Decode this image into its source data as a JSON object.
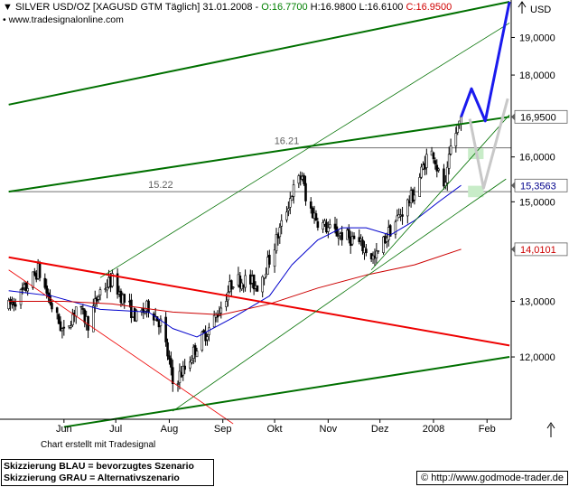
{
  "header": {
    "symbol": "SILVER USD/OZ [XAGUSD GTM",
    "period": "Täglich] 31.01.2008",
    "open": "O:16.7700",
    "hl": "H:16.9800 L:16.6100",
    "close": "C:16.9500",
    "website": "www.tradesignalonline.com",
    "currency": "USD"
  },
  "colors": {
    "candle": "#000000",
    "ma_fast": "#0000cc",
    "ma_slow": "#cc0000",
    "channel": "#007000",
    "down": "#ee0000",
    "scenario_blue": "#1a1aee",
    "scenario_grey": "#c8c8c8",
    "zone": "#c8ecc8"
  },
  "footer": {
    "credit": "Chart erstellt mit Tradesignal",
    "legend_blue": "Skizzierung BLAU = bevorzugtes Szenario",
    "legend_grey": "Skizzierung GRAU = Alternativszenario",
    "copyright": "© http://www.godmode-trader.de"
  },
  "chart_data": {
    "type": "candlestick",
    "title": "SILVER USD/OZ [XAGUSD GTM Täglich] 31.01.2008",
    "ylabel": "USD",
    "scale": "log",
    "ylim": [
      11.0,
      20.0
    ],
    "x_labels": [
      "Jun",
      "Jul",
      "Aug",
      "Sep",
      "Okt",
      "Nov",
      "Dez",
      "2008",
      "Feb"
    ],
    "y_ticks": [
      "19,0000",
      "18,0000",
      "16,0000",
      "15,0000",
      "13,0000",
      "12,0000"
    ],
    "price_tags": [
      "16,9500",
      "15,3563",
      "14,0101"
    ],
    "annotations": [
      "16.21",
      "15.22"
    ],
    "ohlc_latest": {
      "date": "31.01.2008",
      "open": 16.77,
      "high": 16.98,
      "low": 16.61,
      "close": 16.95
    },
    "anchors": [
      [
        "2007-05-14",
        12.9
      ],
      [
        "2007-05-23",
        13.2
      ],
      [
        "2007-05-31",
        13.6
      ],
      [
        "2007-06-08",
        12.9
      ],
      [
        "2007-06-15",
        12.4
      ],
      [
        "2007-06-22",
        12.9
      ],
      [
        "2007-06-29",
        12.6
      ],
      [
        "2007-07-06",
        13.2
      ],
      [
        "2007-07-13",
        13.4
      ],
      [
        "2007-07-20",
        13.0
      ],
      [
        "2007-07-27",
        12.7
      ],
      [
        "2007-08-03",
        12.9
      ],
      [
        "2007-08-10",
        12.6
      ],
      [
        "2007-08-15",
        11.9
      ],
      [
        "2007-08-17",
        11.55
      ],
      [
        "2007-08-24",
        11.8
      ],
      [
        "2007-08-31",
        12.2
      ],
      [
        "2007-09-07",
        12.5
      ],
      [
        "2007-09-14",
        12.9
      ],
      [
        "2007-09-21",
        13.4
      ],
      [
        "2007-09-28",
        13.4
      ],
      [
        "2007-10-05",
        13.3
      ],
      [
        "2007-10-12",
        13.8
      ],
      [
        "2007-10-19",
        14.5
      ],
      [
        "2007-10-25",
        15.2
      ],
      [
        "2007-10-31",
        15.6
      ],
      [
        "2007-11-02",
        15.0
      ],
      [
        "2007-11-09",
        14.6
      ],
      [
        "2007-11-16",
        14.4
      ],
      [
        "2007-11-23",
        14.3
      ],
      [
        "2007-11-30",
        14.2
      ],
      [
        "2007-12-07",
        14.0
      ],
      [
        "2007-12-12",
        13.8
      ],
      [
        "2007-12-19",
        14.3
      ],
      [
        "2007-12-28",
        14.8
      ],
      [
        "2008-01-04",
        15.2
      ],
      [
        "2008-01-11",
        16.0
      ],
      [
        "2008-01-15",
        16.1
      ],
      [
        "2008-01-18",
        15.6
      ],
      [
        "2008-01-22",
        15.3
      ],
      [
        "2008-01-25",
        16.2
      ],
      [
        "2008-01-31",
        16.95
      ]
    ],
    "ma_fast": {
      "color": "#0000cc",
      "points": [
        [
          "2007-05-14",
          13.2
        ],
        [
          "2007-06-08",
          13.1
        ],
        [
          "2007-07-06",
          12.85
        ],
        [
          "2007-08-03",
          12.8
        ],
        [
          "2007-08-17",
          12.5
        ],
        [
          "2007-08-31",
          12.35
        ],
        [
          "2007-09-21",
          12.7
        ],
        [
          "2007-10-12",
          13.1
        ],
        [
          "2007-10-25",
          13.7
        ],
        [
          "2007-11-09",
          14.2
        ],
        [
          "2007-11-23",
          14.45
        ],
        [
          "2007-12-07",
          14.45
        ],
        [
          "2007-12-21",
          14.3
        ],
        [
          "2008-01-04",
          14.6
        ],
        [
          "2008-01-18",
          15.0
        ],
        [
          "2008-01-31",
          15.36
        ]
      ]
    },
    "ma_slow": {
      "color": "#cc0000",
      "points": [
        [
          "2007-05-14",
          13.0
        ],
        [
          "2007-06-15",
          13.0
        ],
        [
          "2007-07-13",
          12.95
        ],
        [
          "2007-08-17",
          12.8
        ],
        [
          "2007-09-14",
          12.75
        ],
        [
          "2007-10-12",
          12.95
        ],
        [
          "2007-11-09",
          13.25
        ],
        [
          "2007-12-07",
          13.5
        ],
        [
          "2008-01-04",
          13.7
        ],
        [
          "2008-01-31",
          14.01
        ]
      ]
    },
    "lines": [
      {
        "name": "channel-top",
        "color": "#007000",
        "points": [
          [
            "2007-05-14",
            17.25
          ],
          [
            "2008-02-28",
            20.0
          ]
        ]
      },
      {
        "name": "channel-mid",
        "color": "#007000",
        "points": [
          [
            "2007-05-14",
            15.22
          ],
          [
            "2007-10-29",
            16.21
          ],
          [
            "2008-02-28",
            16.95
          ]
        ]
      },
      {
        "name": "channel-bottom",
        "color": "#007000",
        "points": [
          [
            "2007-06-15",
            10.85
          ],
          [
            "2008-02-28",
            12.0
          ]
        ]
      },
      {
        "name": "downtrend",
        "color": "#ee0000",
        "points": [
          [
            "2007-05-14",
            13.85
          ],
          [
            "2008-02-28",
            12.2
          ]
        ]
      },
      {
        "name": "aug-low-channel-lower",
        "color": "#007000",
        "points": [
          [
            "2007-08-17",
            11.1
          ],
          [
            "2008-02-26",
            15.5
          ]
        ]
      },
      {
        "name": "aug-low-channel-upper",
        "color": "#007000",
        "points": [
          [
            "2007-07-06",
            13.45
          ],
          [
            "2008-02-28",
            19.4
          ]
        ]
      },
      {
        "name": "dec-low-channel",
        "color": "#007000",
        "points": [
          [
            "2007-12-10",
            13.6
          ],
          [
            "2008-02-28",
            17.0
          ]
        ]
      },
      {
        "name": "scenario-blue",
        "color": "#1a1aee",
        "points": [
          [
            "2008-01-31",
            16.95
          ],
          [
            "2008-02-06",
            17.65
          ],
          [
            "2008-02-14",
            16.85
          ],
          [
            "2008-02-28",
            20.0
          ]
        ]
      },
      {
        "name": "scenario-grey",
        "color": "#c8c8c8",
        "points": [
          [
            "2008-02-05",
            16.9
          ],
          [
            "2008-02-13",
            15.3
          ],
          [
            "2008-02-27",
            17.4
          ]
        ]
      }
    ],
    "levels": [
      {
        "value": 16.21,
        "from": "2007-10-29",
        "to": "2008-02-28"
      },
      {
        "value": 15.22,
        "from": "2007-05-14",
        "to": "2008-02-28"
      }
    ],
    "zones": [
      {
        "from": "2008-02-04",
        "to": "2008-02-13",
        "lo": 15.95,
        "hi": 16.2
      },
      {
        "from": "2008-02-04",
        "to": "2008-02-13",
        "lo": 15.1,
        "hi": 15.35
      }
    ]
  }
}
